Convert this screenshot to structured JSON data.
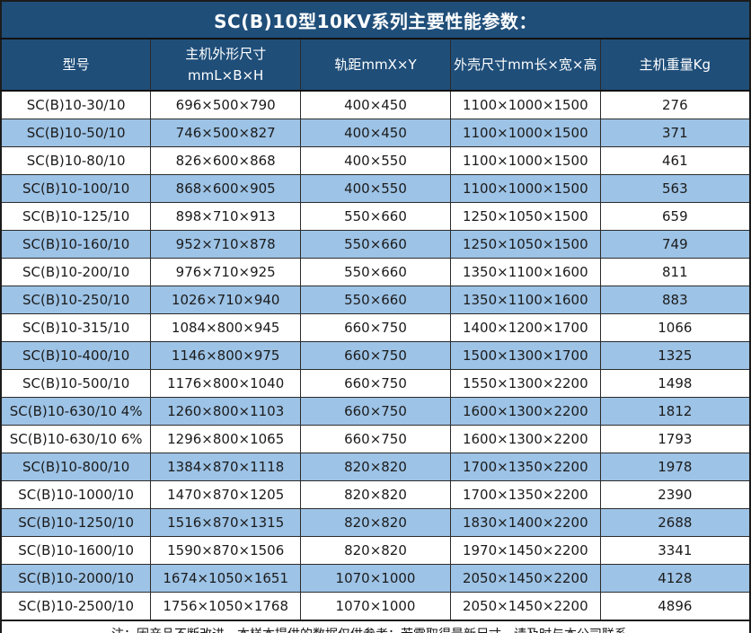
{
  "title": "SC(B)10型10KV系列主要性能参数：",
  "colors": {
    "header_bg": "#1F4E79",
    "header_text": "#FFFFFF",
    "band_row_bg": "#9DC3E6",
    "plain_row_bg": "#FFFFFF",
    "body_text": "#1B1B1B",
    "grid_border": "#2B2B2B"
  },
  "table": {
    "headers": [
      {
        "line1": "型号"
      },
      {
        "line1": "主机外形尺寸",
        "line2": "mmL×B×H"
      },
      {
        "line1": "轨距mmX×Y"
      },
      {
        "line1": "外壳尺寸mm长×宽×高"
      },
      {
        "line1": "主机重量Kg"
      }
    ],
    "rows": [
      [
        "SC(B)10-30/10",
        "696×500×790",
        "400×450",
        "1100×1000×1500",
        "276"
      ],
      [
        "SC(B)10-50/10",
        "746×500×827",
        "400×450",
        "1100×1000×1500",
        "371"
      ],
      [
        "SC(B)10-80/10",
        "826×600×868",
        "400×550",
        "1100×1000×1500",
        "461"
      ],
      [
        "SC(B)10-100/10",
        "868×600×905",
        "400×550",
        "1100×1000×1500",
        "563"
      ],
      [
        "SC(B)10-125/10",
        "898×710×913",
        "550×660",
        "1250×1050×1500",
        "659"
      ],
      [
        "SC(B)10-160/10",
        "952×710×878",
        "550×660",
        "1250×1050×1500",
        "749"
      ],
      [
        "SC(B)10-200/10",
        "976×710×925",
        "550×660",
        "1350×1100×1600",
        "811"
      ],
      [
        "SC(B)10-250/10",
        "1026×710×940",
        "550×660",
        "1350×1100×1600",
        "883"
      ],
      [
        "SC(B)10-315/10",
        "1084×800×945",
        "660×750",
        "1400×1200×1700",
        "1066"
      ],
      [
        "SC(B)10-400/10",
        "1146×800×975",
        "660×750",
        "1500×1300×1700",
        "1325"
      ],
      [
        "SC(B)10-500/10",
        "1176×800×1040",
        "660×750",
        "1550×1300×2200",
        "1498"
      ],
      [
        "SC(B)10-630/10 4%",
        "1260×800×1103",
        "660×750",
        "1600×1300×2200",
        "1812"
      ],
      [
        "SC(B)10-630/10 6%",
        "1296×800×1065",
        "660×750",
        "1600×1300×2200",
        "1793"
      ],
      [
        "SC(B)10-800/10",
        "1384×870×1118",
        "820×820",
        "1700×1350×2200",
        "1978"
      ],
      [
        "SC(B)10-1000/10",
        "1470×870×1205",
        "820×820",
        "1700×1350×2200",
        "2390"
      ],
      [
        "SC(B)10-1250/10",
        "1516×870×1315",
        "820×820",
        "1830×1400×2200",
        "2688"
      ],
      [
        "SC(B)10-1600/10",
        "1590×870×1506",
        "820×820",
        "1970×1450×2200",
        "3341"
      ],
      [
        "SC(B)10-2000/10",
        "1674×1050×1651",
        "1070×1000",
        "2050×1450×2200",
        "4128"
      ],
      [
        "SC(B)10-2500/10",
        "1756×1050×1768",
        "1070×1000",
        "2050×1450×2200",
        "4896"
      ]
    ]
  },
  "footer": {
    "note": "注：因产品不断改进，本样本提供的数据仅供参考；若需取得最新尺寸，请及时与本公司联系。"
  }
}
